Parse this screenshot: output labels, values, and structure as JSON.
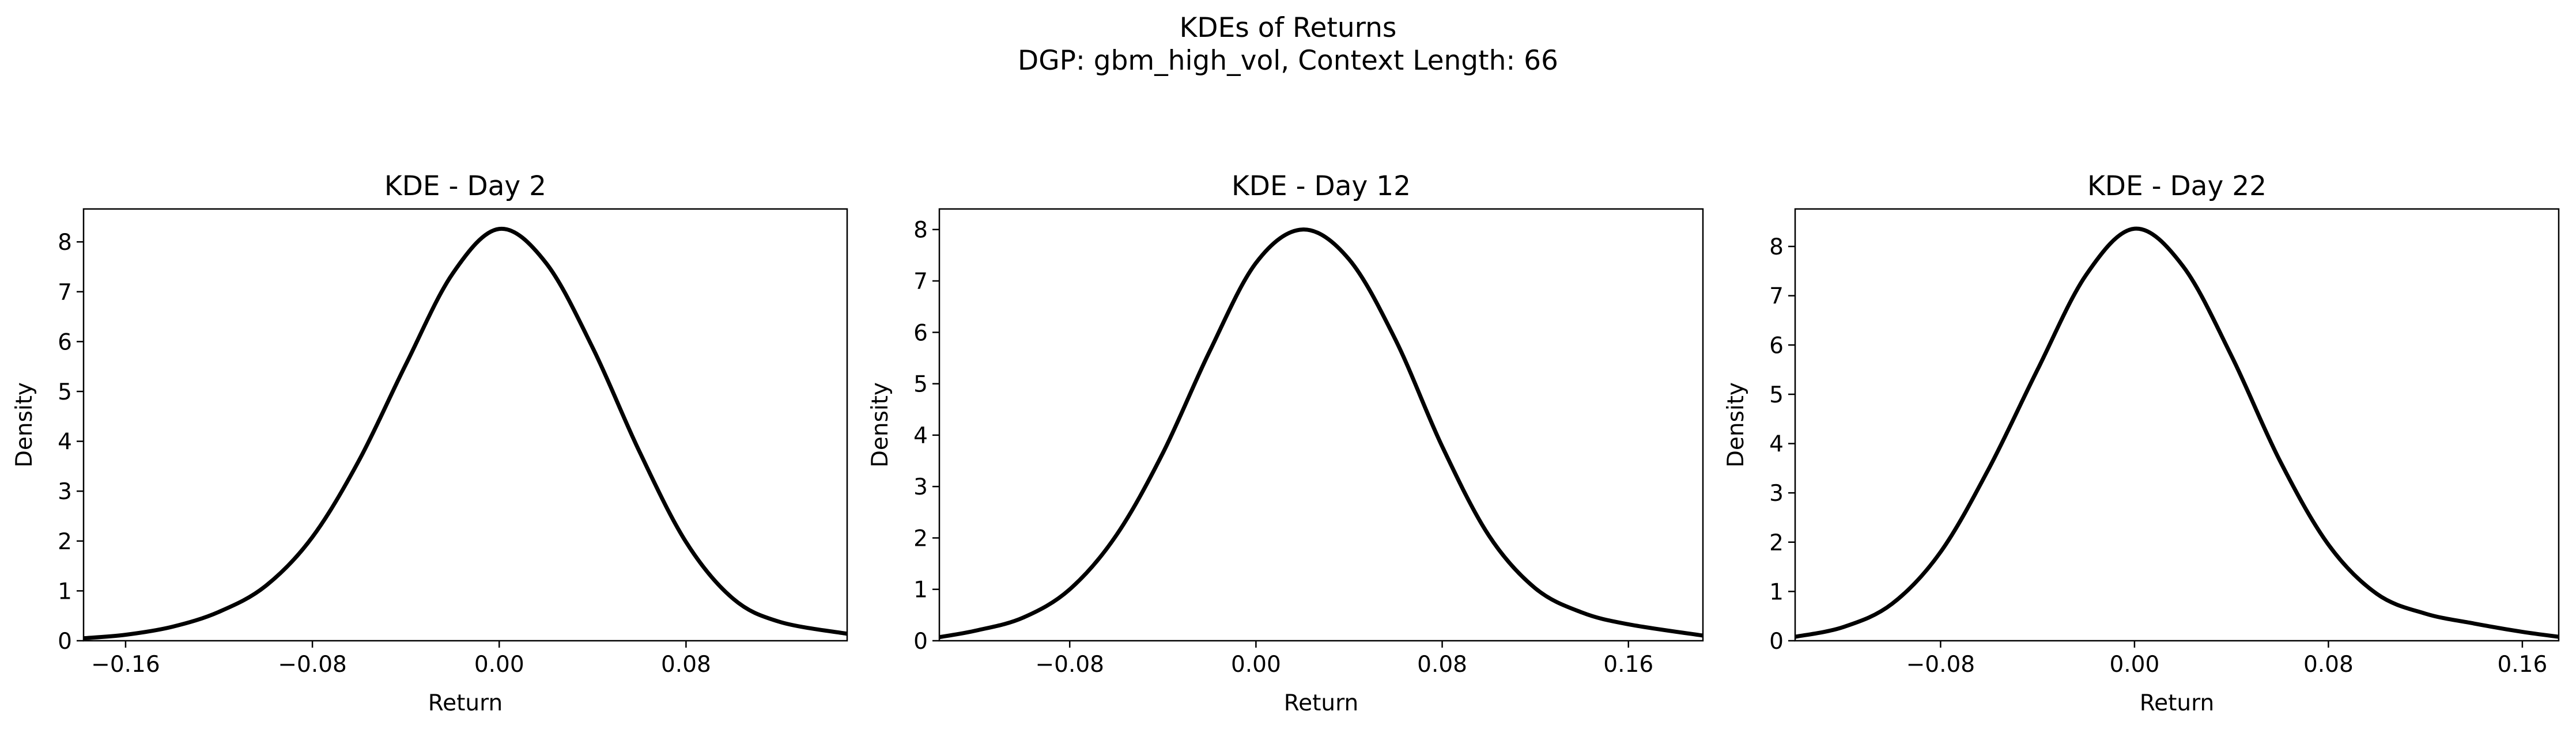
{
  "figure": {
    "title": "KDEs of Returns",
    "subtitle": "DGP: gbm_high_vol, Context Length: 66"
  },
  "colors": {
    "line": "#000000",
    "background": "#ffffff",
    "axes": "#000000"
  },
  "chart_data": [
    {
      "type": "line",
      "title": "KDE - Day 2",
      "xlabel": "Return",
      "ylabel": "Density",
      "xlim": [
        -0.178,
        0.149
      ],
      "ylim": [
        0,
        8.66
      ],
      "xticks": [
        -0.16,
        -0.08,
        0.0,
        0.08
      ],
      "xtick_labels": [
        "−0.16",
        "−0.08",
        "0.00",
        "0.08"
      ],
      "yticks": [
        0,
        1,
        2,
        3,
        4,
        5,
        6,
        7,
        8
      ],
      "ytick_labels": [
        "0",
        "1",
        "2",
        "3",
        "4",
        "5",
        "6",
        "7",
        "8"
      ],
      "grid": false,
      "series": [
        {
          "x": [
            -0.178,
            -0.16,
            -0.14,
            -0.12,
            -0.1,
            -0.08,
            -0.06,
            -0.04,
            -0.02,
            0.0,
            0.02,
            0.04,
            0.06,
            0.08,
            0.1,
            0.12,
            0.149
          ],
          "y": [
            0.05,
            0.12,
            0.28,
            0.58,
            1.1,
            2.08,
            3.62,
            5.54,
            7.36,
            8.26,
            7.58,
            5.88,
            3.8,
            1.98,
            0.85,
            0.38,
            0.14
          ]
        }
      ]
    },
    {
      "type": "line",
      "title": "KDE - Day 12",
      "xlabel": "Return",
      "ylabel": "Density",
      "xlim": [
        -0.136,
        0.192
      ],
      "ylim": [
        0,
        8.4
      ],
      "xticks": [
        -0.08,
        0.0,
        0.08,
        0.16
      ],
      "xtick_labels": [
        "−0.08",
        "0.00",
        "0.08",
        "0.16"
      ],
      "yticks": [
        0,
        1,
        2,
        3,
        4,
        5,
        6,
        7,
        8
      ],
      "ytick_labels": [
        "0",
        "1",
        "2",
        "3",
        "4",
        "5",
        "6",
        "7",
        "8"
      ],
      "grid": false,
      "series": [
        {
          "x": [
            -0.136,
            -0.12,
            -0.1,
            -0.08,
            -0.06,
            -0.04,
            -0.02,
            0.0,
            0.02,
            0.04,
            0.06,
            0.08,
            0.1,
            0.12,
            0.14,
            0.16,
            0.192
          ],
          "y": [
            0.07,
            0.2,
            0.45,
            1.0,
            2.05,
            3.65,
            5.62,
            7.35,
            8.0,
            7.42,
            5.85,
            3.78,
            2.05,
            1.02,
            0.55,
            0.32,
            0.1
          ]
        }
      ]
    },
    {
      "type": "line",
      "title": "KDE - Day 22",
      "xlabel": "Return",
      "ylabel": "Density",
      "xlim": [
        -0.14,
        0.175
      ],
      "ylim": [
        0,
        8.76
      ],
      "xticks": [
        -0.08,
        0.0,
        0.08,
        0.16
      ],
      "xtick_labels": [
        "−0.08",
        "0.00",
        "0.08",
        "0.16"
      ],
      "yticks": [
        0,
        1,
        2,
        3,
        4,
        5,
        6,
        7,
        8
      ],
      "ytick_labels": [
        "0",
        "1",
        "2",
        "3",
        "4",
        "5",
        "6",
        "7",
        "8"
      ],
      "grid": false,
      "series": [
        {
          "x": [
            -0.14,
            -0.12,
            -0.1,
            -0.08,
            -0.06,
            -0.04,
            -0.02,
            0.0,
            0.02,
            0.04,
            0.06,
            0.08,
            0.1,
            0.12,
            0.14,
            0.16,
            0.175
          ],
          "y": [
            0.08,
            0.28,
            0.75,
            1.8,
            3.5,
            5.5,
            7.42,
            8.36,
            7.6,
            5.78,
            3.65,
            1.95,
            0.95,
            0.55,
            0.35,
            0.18,
            0.08
          ]
        }
      ]
    }
  ]
}
